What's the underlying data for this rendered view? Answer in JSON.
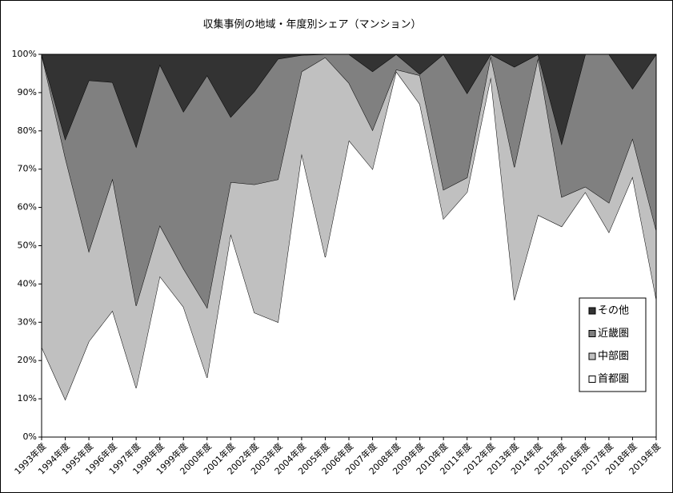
{
  "chart_data": {
    "type": "stacked-area-percent",
    "title": "収集事例の地域・年度別シェア（マンション）",
    "categories": [
      "1993年度",
      "1994年度",
      "1995年度",
      "1996年度",
      "1997年度",
      "1998年度",
      "1999年度",
      "2000年度",
      "2001年度",
      "2002年度",
      "2003年度",
      "2004年度",
      "2005年度",
      "2006年度",
      "2007年度",
      "2008年度",
      "2009年度",
      "2010年度",
      "2011年度",
      "2012年度",
      "2013年度",
      "2014年度",
      "2015年度",
      "2016年度",
      "2017年度",
      "2018年度",
      "2019年度"
    ],
    "series": [
      {
        "name": "首都圏",
        "color": "#ffffff",
        "values": [
          23.5,
          9.8,
          25,
          33,
          12.8,
          42,
          34,
          15.5,
          53,
          32.5,
          30,
          74,
          47,
          77.5,
          70,
          95.5,
          87,
          57,
          64,
          94,
          35.8,
          58,
          55,
          64,
          53.5,
          68,
          36
        ]
      },
      {
        "name": "中部圏",
        "color": "#c0c0c0",
        "values": [
          76.5,
          63.2,
          23.5,
          34.5,
          21.5,
          13.3,
          10,
          18.3,
          13.6,
          33.5,
          37.3,
          21.5,
          52.2,
          15,
          10.2,
          0.5,
          7.5,
          7.6,
          3.8,
          5.5,
          34.7,
          41,
          7.7,
          1.4,
          7.7,
          10,
          18
        ]
      },
      {
        "name": "近畿圏",
        "color": "#808080",
        "values": [
          0,
          4.8,
          44.7,
          25.2,
          41.5,
          42,
          41,
          60.7,
          17,
          24.3,
          31.5,
          4.3,
          0.8,
          7.5,
          15.3,
          4,
          0.3,
          35.4,
          22,
          0.5,
          26.2,
          1,
          13.9,
          34.6,
          38.8,
          13,
          46
        ]
      },
      {
        "name": "その他",
        "color": "#333333",
        "values": [
          0,
          22.2,
          6.8,
          7.3,
          24.2,
          2.7,
          15,
          5.5,
          16.4,
          9.7,
          1.2,
          0.2,
          0,
          0,
          4.5,
          0,
          5.2,
          0,
          10.2,
          0,
          3.3,
          0,
          23.4,
          0,
          0,
          9,
          0
        ]
      }
    ],
    "ylim": [
      0,
      100
    ],
    "yticks": [
      {
        "value": 0,
        "label": "0%"
      },
      {
        "value": 10,
        "label": "10%"
      },
      {
        "value": 20,
        "label": "20%"
      },
      {
        "value": 30,
        "label": "30%"
      },
      {
        "value": 40,
        "label": "40%"
      },
      {
        "value": 50,
        "label": "50%"
      },
      {
        "value": 60,
        "label": "60%"
      },
      {
        "value": 70,
        "label": "70%"
      },
      {
        "value": 80,
        "label": "80%"
      },
      {
        "value": 90,
        "label": "90%"
      },
      {
        "value": 100,
        "label": "100%"
      }
    ],
    "legend": "right"
  }
}
